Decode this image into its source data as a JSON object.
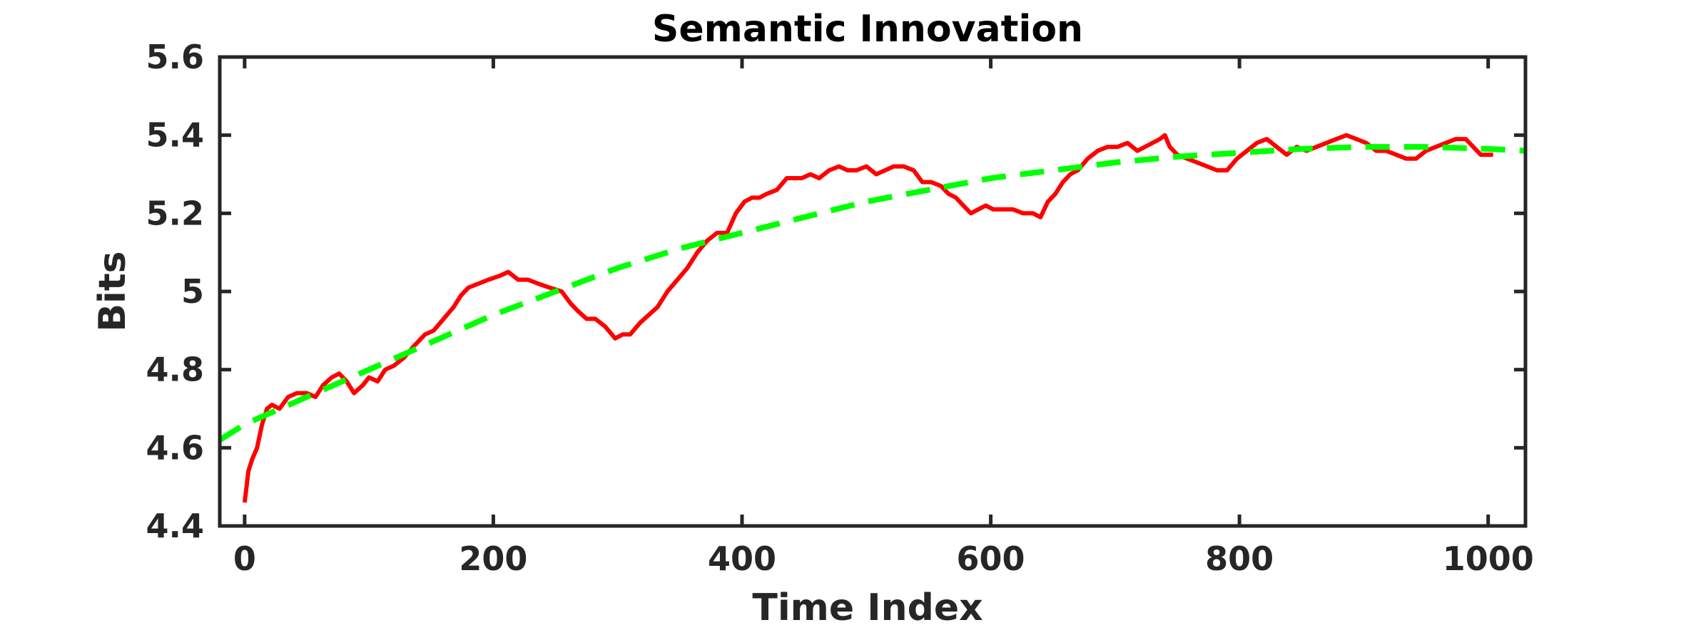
{
  "chart_data": {
    "type": "line",
    "title": "Semantic Innovation",
    "xlabel": "Time Index",
    "ylabel": "Bits",
    "xlim": [
      -20,
      1030
    ],
    "ylim": [
      4.4,
      5.6
    ],
    "xticks": [
      0,
      200,
      400,
      600,
      800,
      1000
    ],
    "xtick_labels": [
      "0",
      "200",
      "400",
      "600",
      "800",
      "1000"
    ],
    "yticks": [
      4.4,
      4.6,
      4.8,
      5.0,
      5.2,
      5.4,
      5.6
    ],
    "ytick_labels": [
      "4.4",
      "4.6",
      "4.8",
      "5",
      "5.2",
      "5.4",
      "5.6"
    ],
    "grid": false,
    "series": [
      {
        "style": "solid",
        "color": "#ff0000",
        "x": [
          0,
          3,
          6,
          10,
          14,
          18,
          22,
          28,
          35,
          42,
          50,
          57,
          63,
          70,
          76,
          82,
          88,
          95,
          100,
          107,
          113,
          120,
          128,
          136,
          145,
          152,
          160,
          168,
          174,
          180,
          188,
          196,
          205,
          212,
          220,
          228,
          236,
          245,
          255,
          262,
          268,
          275,
          282,
          290,
          298,
          304,
          310,
          318,
          325,
          332,
          340,
          348,
          356,
          364,
          372,
          380,
          388,
          395,
          402,
          408,
          414,
          420,
          428,
          436,
          442,
          448,
          455,
          462,
          470,
          478,
          485,
          492,
          500,
          508,
          515,
          522,
          530,
          538,
          545,
          552,
          560,
          566,
          572,
          578,
          584,
          590,
          596,
          602,
          610,
          618,
          626,
          634,
          640,
          646,
          652,
          658,
          664,
          670,
          678,
          686,
          694,
          702,
          710,
          718,
          724,
          730,
          736,
          740,
          744,
          750,
          758,
          766,
          774,
          782,
          790,
          798,
          806,
          814,
          822,
          830,
          838,
          846,
          854,
          862,
          870,
          878,
          886,
          894,
          902,
          910,
          918,
          926,
          934,
          942,
          950,
          958,
          966,
          974,
          982,
          988,
          994,
          1000,
          1004
        ],
        "y": [
          4.46,
          4.54,
          4.57,
          4.6,
          4.66,
          4.7,
          4.71,
          4.7,
          4.73,
          4.74,
          4.74,
          4.73,
          4.76,
          4.78,
          4.79,
          4.77,
          4.74,
          4.76,
          4.78,
          4.77,
          4.8,
          4.81,
          4.83,
          4.86,
          4.89,
          4.9,
          4.93,
          4.96,
          4.99,
          5.01,
          5.02,
          5.03,
          5.04,
          5.05,
          5.03,
          5.03,
          5.02,
          5.01,
          5.0,
          4.97,
          4.95,
          4.93,
          4.93,
          4.91,
          4.88,
          4.89,
          4.89,
          4.92,
          4.94,
          4.96,
          5.0,
          5.03,
          5.06,
          5.1,
          5.13,
          5.15,
          5.15,
          5.2,
          5.23,
          5.24,
          5.24,
          5.25,
          5.26,
          5.29,
          5.29,
          5.29,
          5.3,
          5.29,
          5.31,
          5.32,
          5.31,
          5.31,
          5.32,
          5.3,
          5.31,
          5.32,
          5.32,
          5.31,
          5.28,
          5.28,
          5.27,
          5.25,
          5.24,
          5.22,
          5.2,
          5.21,
          5.22,
          5.21,
          5.21,
          5.21,
          5.2,
          5.2,
          5.19,
          5.23,
          5.25,
          5.28,
          5.3,
          5.31,
          5.34,
          5.36,
          5.37,
          5.37,
          5.38,
          5.36,
          5.37,
          5.38,
          5.39,
          5.4,
          5.37,
          5.35,
          5.34,
          5.33,
          5.32,
          5.31,
          5.31,
          5.34,
          5.36,
          5.38,
          5.39,
          5.37,
          5.35,
          5.37,
          5.36,
          5.37,
          5.38,
          5.39,
          5.4,
          5.39,
          5.38,
          5.36,
          5.36,
          5.35,
          5.34,
          5.34,
          5.36,
          5.37,
          5.38,
          5.39,
          5.39,
          5.37,
          5.35,
          5.35,
          5.35
        ]
      },
      {
        "style": "dashed",
        "color": "#00ff00",
        "x": [
          -20,
          0,
          50,
          100,
          150,
          200,
          250,
          300,
          350,
          400,
          450,
          500,
          550,
          600,
          650,
          700,
          750,
          800,
          850,
          900,
          950,
          1000,
          1030
        ],
        "y": [
          4.62,
          4.66,
          4.73,
          4.8,
          4.87,
          4.94,
          5.0,
          5.06,
          5.11,
          5.15,
          5.19,
          5.23,
          5.26,
          5.29,
          5.31,
          5.33,
          5.345,
          5.355,
          5.365,
          5.37,
          5.37,
          5.365,
          5.36
        ]
      }
    ]
  }
}
